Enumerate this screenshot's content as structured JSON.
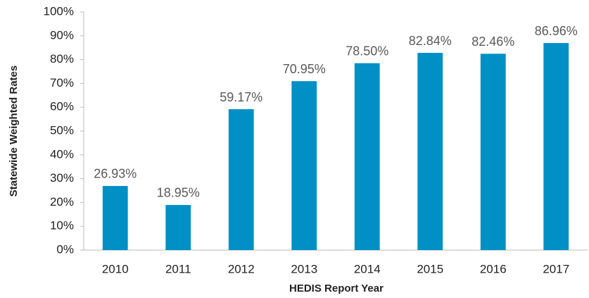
{
  "chart_data": {
    "type": "bar",
    "x_label": "HEDIS Report Year",
    "y_label": "Statewide Weighted Rates",
    "categories": [
      "2010",
      "2011",
      "2012",
      "2013",
      "2014",
      "2015",
      "2016",
      "2017"
    ],
    "values": [
      26.93,
      18.95,
      59.17,
      70.95,
      78.5,
      82.84,
      82.46,
      86.96
    ],
    "value_labels": [
      "26.93%",
      "18.95%",
      "59.17%",
      "70.95%",
      "78.50%",
      "82.84%",
      "82.46%",
      "86.96%"
    ],
    "color": "#0090c6",
    "ylim": [
      0,
      100
    ],
    "yticks": [
      {
        "value": 0,
        "label": "0%"
      },
      {
        "value": 10,
        "label": "10%"
      },
      {
        "value": 20,
        "label": "20%"
      },
      {
        "value": 30,
        "label": "30%"
      },
      {
        "value": 40,
        "label": "40%"
      },
      {
        "value": 50,
        "label": "50%"
      },
      {
        "value": 60,
        "label": "60%"
      },
      {
        "value": 70,
        "label": "70%"
      },
      {
        "value": 80,
        "label": "80%"
      },
      {
        "value": 90,
        "label": "90%"
      },
      {
        "value": 100,
        "label": "100%"
      }
    ],
    "grid": false
  }
}
